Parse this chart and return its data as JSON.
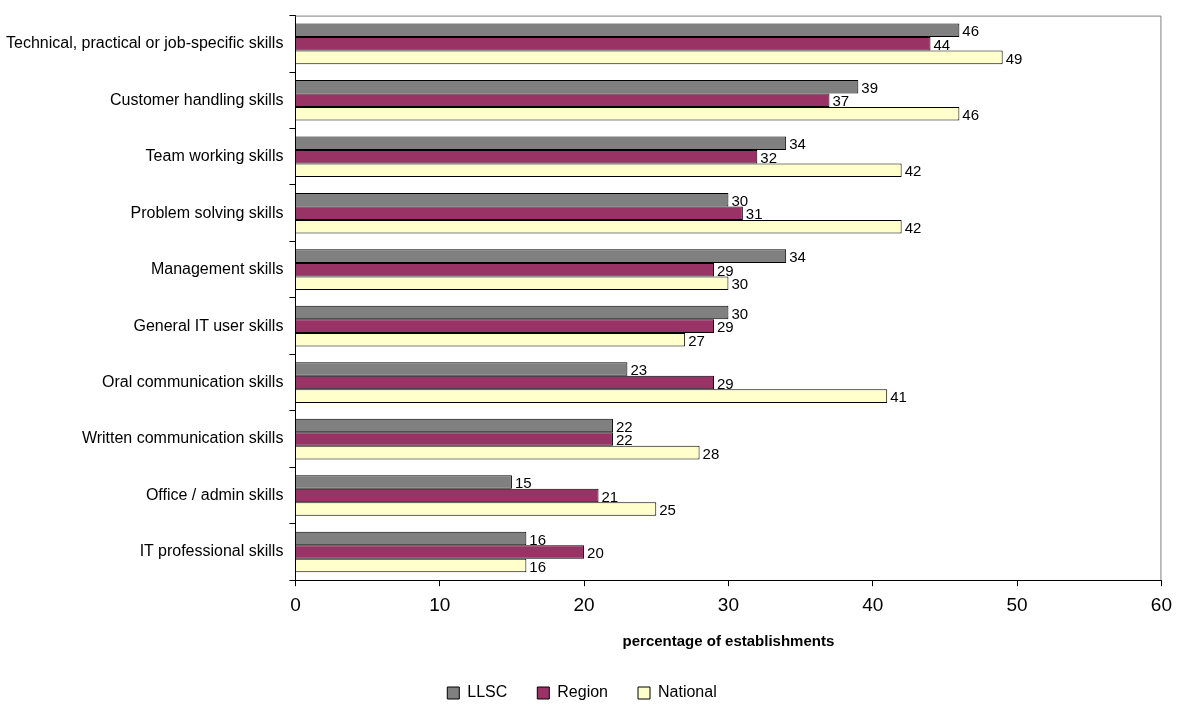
{
  "chart_data": {
    "type": "bar",
    "orientation": "horizontal",
    "xlabel": "percentage of establishments",
    "categories": [
      "Technical, practical or job-specific skills",
      "Customer handling skills",
      "Team working skills",
      "Problem solving skills",
      "Management skills",
      "General IT user skills",
      "Oral communication skills",
      "Written communication skills",
      "Office / admin skills",
      "IT professional skills"
    ],
    "series": [
      {
        "name": "LLSC",
        "color": "#808080",
        "values": [
          46,
          39,
          34,
          30,
          34,
          30,
          23,
          22,
          15,
          16
        ]
      },
      {
        "name": "Region",
        "color": "#993366",
        "values": [
          44,
          37,
          32,
          31,
          29,
          29,
          29,
          22,
          21,
          20
        ]
      },
      {
        "name": "National",
        "color": "#ffffcc",
        "values": [
          49,
          46,
          42,
          42,
          30,
          27,
          41,
          28,
          25,
          16
        ]
      }
    ],
    "xlim": [
      0,
      60
    ],
    "xticks": [
      0,
      10,
      20,
      30,
      40,
      50,
      60
    ],
    "grid": false,
    "legend": "bottom",
    "data_labels": true
  }
}
